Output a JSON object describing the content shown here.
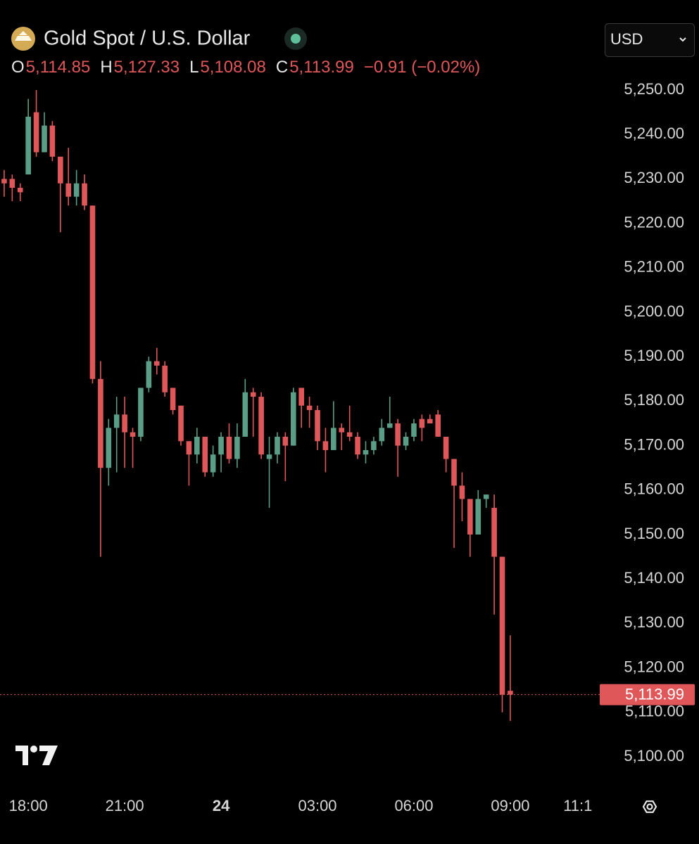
{
  "chart_data": {
    "type": "candlestick",
    "title": "Gold Spot / U.S. Dollar",
    "currency": "USD",
    "ohlc_header": [
      {
        "key": "O",
        "value": "5,114.85"
      },
      {
        "key": "H",
        "value": "5,127.33"
      },
      {
        "key": "L",
        "value": "5,108.08"
      },
      {
        "key": "C",
        "value": "5,113.99"
      }
    ],
    "change": "−0.91 (−0.02%)",
    "up_color": "#5a9e87",
    "down_color": "#e0575a",
    "x": [
      17.25,
      17.5,
      17.75,
      18,
      18.25,
      18.5,
      18.75,
      19,
      19.25,
      19.5,
      19.75,
      20,
      20.25,
      20.5,
      20.75,
      21,
      21.25,
      21.5,
      21.75,
      22,
      22.25,
      22.5,
      22.75,
      23,
      23.25,
      23.5,
      23.75,
      24,
      24.25,
      24.5,
      24.75,
      25,
      25.25,
      25.5,
      25.75,
      26,
      26.25,
      26.5,
      26.75,
      27,
      27.25,
      27.5,
      27.75,
      28,
      28.25,
      28.5,
      28.75,
      29,
      29.25,
      29.5,
      29.75,
      30,
      30.25,
      30.5,
      30.75,
      31,
      31.25,
      31.5,
      31.75,
      32,
      32.25,
      32.5,
      32.75,
      33
    ],
    "open": [
      5230,
      5230,
      5228,
      5231,
      5245,
      5236,
      5242,
      5235,
      5229,
      5226,
      5229,
      5224,
      5185,
      5165,
      5174,
      5177,
      5173,
      5172,
      5183,
      5189,
      5188,
      5183,
      5179,
      5171,
      5168,
      5172,
      5164,
      5168,
      5172,
      5167,
      5172,
      5182,
      5181,
      5167,
      5168,
      5172,
      5170,
      5183,
      5179,
      5178,
      5171,
      5169,
      5174,
      5173,
      5172,
      5168,
      5169,
      5171,
      5174,
      5175,
      5170,
      5172,
      5176,
      5176,
      5177,
      5172,
      5167,
      5161,
      5158,
      5150,
      5158,
      5156,
      5145,
      5114.85
    ],
    "high": [
      5232,
      5231,
      5229,
      5248,
      5250,
      5245,
      5243,
      5235,
      5237,
      5232,
      5231,
      5224,
      5189,
      5176,
      5181,
      5181,
      5174,
      5183,
      5190,
      5192,
      5189,
      5183,
      5179,
      5171,
      5174,
      5172,
      5170,
      5173,
      5175,
      5175,
      5185,
      5183,
      5182,
      5172,
      5173,
      5173,
      5183,
      5183,
      5181,
      5179,
      5174,
      5180,
      5175,
      5179,
      5173,
      5171,
      5172,
      5176,
      5181,
      5176,
      5173,
      5176,
      5177,
      5177,
      5178,
      5172,
      5167,
      5164,
      5158,
      5160,
      5159,
      5159,
      5145,
      5127.33
    ],
    "low": [
      5226,
      5225,
      5225,
      5231,
      5235,
      5236,
      5234,
      5218,
      5224,
      5224,
      5223,
      5184,
      5145,
      5161,
      5164,
      5165,
      5165,
      5171,
      5182,
      5186,
      5181,
      5177,
      5170,
      5161,
      5166,
      5163,
      5163,
      5164,
      5166,
      5165,
      5172,
      5172,
      5167,
      5156,
      5166,
      5162,
      5170,
      5174,
      5174,
      5169,
      5164,
      5169,
      5169,
      5171,
      5167,
      5166,
      5168,
      5170,
      5174,
      5163,
      5169,
      5171,
      5171,
      5175,
      5172,
      5164,
      5147,
      5153,
      5145,
      5150,
      5156,
      5132,
      5110,
      5108.08
    ],
    "close": [
      5229,
      5228,
      5227,
      5244,
      5236,
      5242,
      5235,
      5229,
      5226,
      5229,
      5224,
      5185,
      5165,
      5174,
      5177,
      5173,
      5172,
      5183,
      5189,
      5188,
      5182,
      5178,
      5171,
      5168,
      5172,
      5164,
      5168,
      5172,
      5167,
      5172,
      5182,
      5181,
      5168,
      5168,
      5172,
      5170,
      5182,
      5179,
      5178,
      5171,
      5169,
      5174,
      5173,
      5172,
      5168,
      5169,
      5171,
      5174,
      5175,
      5170,
      5172,
      5175,
      5174,
      5175,
      5172,
      5167,
      5161,
      5158,
      5150,
      5158,
      5159,
      5145,
      5114,
      5113.99
    ],
    "last_price": {
      "value": 5113.99,
      "label": "5,113.99"
    },
    "xlim": [
      17.12,
      35.74
    ],
    "xticks": [
      {
        "value": 18,
        "label": "18:00"
      },
      {
        "value": 21,
        "label": "21:00"
      },
      {
        "value": 24,
        "label": "24"
      },
      {
        "value": 27,
        "label": "03:00"
      },
      {
        "value": 30,
        "label": "06:00"
      },
      {
        "value": 33,
        "label": "09:00"
      },
      {
        "value": 35.1,
        "label": "11:1"
      }
    ],
    "ylim": [
      5093.04,
      5270.25
    ],
    "yticks": [
      {
        "value": 5100,
        "label": "5,100.00"
      },
      {
        "value": 5110,
        "label": "5,110.00"
      },
      {
        "value": 5120,
        "label": "5,120.00"
      },
      {
        "value": 5130,
        "label": "5,130.00"
      },
      {
        "value": 5140,
        "label": "5,140.00"
      },
      {
        "value": 5150,
        "label": "5,150.00"
      },
      {
        "value": 5160,
        "label": "5,160.00"
      },
      {
        "value": 5170,
        "label": "5,170.00"
      },
      {
        "value": 5180,
        "label": "5,180.00"
      },
      {
        "value": 5190,
        "label": "5,190.00"
      },
      {
        "value": 5200,
        "label": "5,200.00"
      },
      {
        "value": 5210,
        "label": "5,210.00"
      },
      {
        "value": 5220,
        "label": "5,220.00"
      },
      {
        "value": 5230,
        "label": "5,230.00"
      },
      {
        "value": 5240,
        "label": "5,240.00"
      },
      {
        "value": 5250,
        "label": "5,250.00"
      }
    ]
  }
}
